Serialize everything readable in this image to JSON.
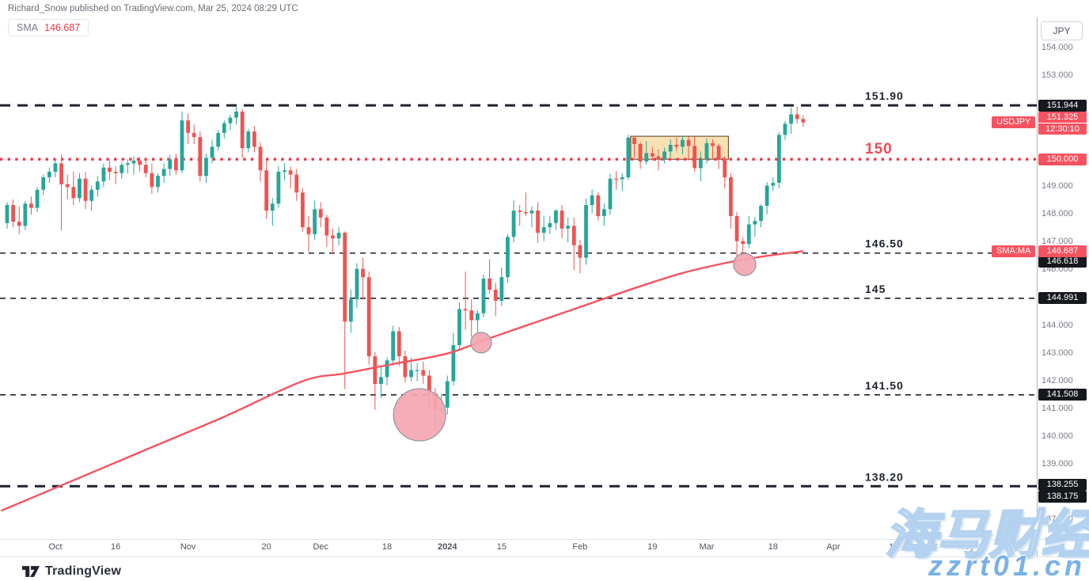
{
  "header": {
    "published_line": "Richard_Snow published on TradingView.com, Mar 25, 2024 08:29 UTC"
  },
  "legend": {
    "indicator": "SMA",
    "value": "146.687"
  },
  "axis_button_label": "JPY",
  "footer": {
    "brand": "TradingView"
  },
  "watermark": {
    "line1": "海马财经",
    "line2": "zzrt01.cn"
  },
  "colors": {
    "up": "#26a69a",
    "down": "#ef5350",
    "sma_line": "#f7525f",
    "red": "#f23645",
    "badge_red": "#f7525f",
    "badge_dark": "#16181e",
    "level_dark": "#1e222d",
    "axis_text": "#787b86",
    "date_text": "#50535e",
    "box_fill": "rgba(247,216,160,0.8)",
    "box_stroke": "#50401f",
    "circle_fill": "rgba(244,166,178,0.92)",
    "circle_stroke": "#9598a1"
  },
  "chart_data": {
    "type": "candlestick",
    "symbol": "USDJPY",
    "quote_currency": "JPY",
    "last_price_label": "151.325",
    "countdown": "12:30:10",
    "sma_axis_label": "SMA:MA",
    "sma_axis_value": "146.687",
    "ylim": [
      137.0,
      155.0
    ],
    "candles": [
      [
        147.7,
        148.45,
        147.5,
        148.35
      ],
      [
        148.35,
        148.55,
        147.55,
        147.75
      ],
      [
        147.75,
        148.3,
        147.3,
        147.6
      ],
      [
        147.6,
        148.5,
        147.45,
        148.4
      ],
      [
        148.4,
        148.65,
        148.0,
        148.25
      ],
      [
        148.25,
        149.0,
        148.1,
        148.9
      ],
      [
        148.9,
        149.45,
        148.7,
        149.35
      ],
      [
        149.35,
        149.7,
        149.15,
        149.55
      ],
      [
        149.55,
        149.95,
        149.35,
        149.85
      ],
      [
        149.85,
        150.16,
        147.43,
        149.1
      ],
      [
        149.1,
        149.45,
        148.55,
        149.0
      ],
      [
        149.0,
        149.55,
        148.35,
        148.6
      ],
      [
        148.6,
        149.5,
        148.45,
        149.3
      ],
      [
        149.3,
        149.55,
        148.2,
        148.5
      ],
      [
        148.5,
        149.05,
        148.15,
        148.9
      ],
      [
        148.9,
        149.4,
        148.65,
        149.2
      ],
      [
        149.2,
        149.85,
        149.0,
        149.7
      ],
      [
        149.7,
        149.95,
        149.25,
        149.55
      ],
      [
        149.55,
        149.75,
        149.1,
        149.5
      ],
      [
        149.5,
        149.9,
        149.3,
        149.8
      ],
      [
        149.8,
        150.0,
        149.5,
        149.85
      ],
      [
        149.85,
        150.1,
        149.45,
        149.95
      ],
      [
        149.95,
        150.08,
        149.55,
        149.8
      ],
      [
        149.8,
        150.05,
        149.35,
        149.5
      ],
      [
        149.5,
        149.85,
        148.75,
        149.0
      ],
      [
        149.0,
        149.5,
        148.8,
        149.4
      ],
      [
        149.4,
        149.85,
        149.15,
        149.65
      ],
      [
        149.65,
        150.15,
        149.4,
        150.0
      ],
      [
        150.0,
        150.2,
        149.45,
        149.6
      ],
      [
        149.6,
        151.72,
        149.5,
        151.4
      ],
      [
        151.4,
        151.65,
        150.55,
        150.95
      ],
      [
        150.95,
        151.25,
        150.55,
        150.8
      ],
      [
        150.8,
        151.0,
        149.2,
        149.4
      ],
      [
        149.4,
        150.2,
        149.15,
        150.05
      ],
      [
        150.05,
        150.7,
        149.85,
        150.45
      ],
      [
        150.45,
        151.05,
        150.3,
        150.95
      ],
      [
        150.95,
        151.4,
        150.75,
        151.3
      ],
      [
        151.3,
        151.6,
        151.05,
        151.5
      ],
      [
        151.5,
        151.91,
        151.25,
        151.72
      ],
      [
        151.72,
        151.82,
        150.05,
        150.4
      ],
      [
        150.4,
        151.1,
        150.25,
        151.0
      ],
      [
        151.0,
        151.2,
        150.25,
        150.45
      ],
      [
        150.45,
        150.6,
        149.2,
        149.6
      ],
      [
        149.6,
        149.95,
        147.85,
        148.15
      ],
      [
        148.15,
        148.6,
        147.6,
        148.4
      ],
      [
        148.4,
        149.75,
        148.25,
        149.55
      ],
      [
        149.55,
        149.85,
        149.25,
        149.6
      ],
      [
        149.6,
        149.75,
        148.95,
        149.45
      ],
      [
        149.45,
        149.65,
        148.5,
        148.8
      ],
      [
        148.8,
        148.95,
        147.4,
        147.55
      ],
      [
        147.55,
        147.95,
        146.65,
        147.3
      ],
      [
        147.3,
        148.5,
        147.1,
        148.2
      ],
      [
        148.2,
        148.45,
        147.55,
        147.9
      ],
      [
        147.9,
        148.0,
        146.85,
        147.25
      ],
      [
        147.25,
        147.5,
        146.6,
        147.15
      ],
      [
        147.15,
        147.55,
        146.9,
        147.35
      ],
      [
        147.35,
        147.4,
        141.71,
        144.15
      ],
      [
        144.15,
        145.3,
        143.75,
        144.95
      ],
      [
        144.95,
        146.25,
        144.65,
        146.05
      ],
      [
        146.05,
        146.45,
        144.95,
        145.75
      ],
      [
        145.75,
        145.95,
        142.6,
        142.9
      ],
      [
        142.9,
        143.05,
        140.97,
        141.9
      ],
      [
        141.9,
        142.55,
        141.4,
        142.15
      ],
      [
        142.15,
        142.85,
        141.85,
        142.75
      ],
      [
        142.75,
        144.0,
        142.55,
        143.8
      ],
      [
        143.8,
        143.95,
        142.55,
        142.9
      ],
      [
        142.9,
        143.1,
        141.95,
        142.15
      ],
      [
        142.15,
        142.85,
        142.0,
        142.4
      ],
      [
        142.4,
        142.65,
        142.0,
        142.4
      ],
      [
        142.4,
        142.7,
        141.9,
        142.2
      ],
      [
        142.2,
        142.4,
        140.9,
        141.55
      ],
      [
        141.55,
        141.75,
        140.25,
        140.95
      ],
      [
        140.95,
        141.55,
        140.5,
        141.05
      ],
      [
        141.05,
        142.2,
        140.8,
        142.0
      ],
      [
        142.0,
        143.75,
        141.85,
        143.3
      ],
      [
        143.3,
        144.85,
        143.1,
        144.6
      ],
      [
        144.6,
        145.95,
        143.85,
        144.55
      ],
      [
        144.55,
        144.95,
        143.6,
        144.2
      ],
      [
        144.2,
        144.55,
        143.4,
        144.45
      ],
      [
        144.45,
        145.85,
        144.3,
        145.7
      ],
      [
        145.7,
        146.4,
        145.15,
        145.3
      ],
      [
        145.3,
        145.55,
        144.35,
        144.9
      ],
      [
        144.9,
        146.1,
        144.7,
        145.75
      ],
      [
        145.75,
        147.3,
        145.55,
        147.2
      ],
      [
        147.2,
        148.52,
        147.0,
        148.15
      ],
      [
        148.15,
        148.35,
        147.6,
        148.1
      ],
      [
        148.1,
        148.8,
        147.95,
        148.05
      ],
      [
        148.05,
        148.3,
        147.55,
        148.15
      ],
      [
        148.15,
        148.45,
        146.99,
        147.35
      ],
      [
        147.35,
        147.95,
        147.05,
        147.55
      ],
      [
        147.55,
        147.95,
        147.3,
        147.7
      ],
      [
        147.7,
        148.2,
        147.45,
        148.15
      ],
      [
        148.15,
        148.35,
        147.15,
        147.5
      ],
      [
        147.5,
        147.9,
        147.0,
        147.6
      ],
      [
        147.6,
        147.9,
        146.0,
        146.9
      ],
      [
        146.9,
        147.1,
        145.89,
        146.45
      ],
      [
        146.45,
        148.58,
        146.2,
        148.35
      ],
      [
        148.35,
        148.9,
        148.05,
        148.7
      ],
      [
        148.7,
        148.8,
        147.8,
        147.95
      ],
      [
        147.95,
        148.4,
        147.6,
        148.2
      ],
      [
        148.2,
        149.48,
        148.0,
        149.3
      ],
      [
        149.3,
        149.57,
        148.9,
        149.28
      ],
      [
        149.28,
        149.5,
        148.85,
        149.35
      ],
      [
        149.35,
        150.88,
        149.25,
        150.78
      ],
      [
        150.78,
        150.85,
        150.05,
        150.55
      ],
      [
        150.55,
        150.62,
        149.65,
        149.92
      ],
      [
        149.92,
        150.65,
        149.8,
        150.22
      ],
      [
        150.22,
        150.45,
        149.95,
        150.1
      ],
      [
        150.1,
        150.35,
        149.6,
        150.0
      ],
      [
        150.0,
        150.42,
        149.85,
        150.28
      ],
      [
        150.28,
        150.72,
        150.08,
        150.52
      ],
      [
        150.52,
        150.78,
        150.3,
        150.45
      ],
      [
        150.45,
        150.85,
        150.18,
        150.7
      ],
      [
        150.7,
        150.82,
        149.95,
        150.48
      ],
      [
        150.48,
        150.82,
        149.55,
        149.68
      ],
      [
        149.68,
        150.28,
        149.2,
        149.98
      ],
      [
        149.98,
        150.75,
        149.85,
        150.58
      ],
      [
        150.58,
        150.72,
        150.02,
        150.48
      ],
      [
        150.48,
        150.56,
        149.65,
        150.02
      ],
      [
        150.02,
        150.12,
        148.95,
        149.35
      ],
      [
        149.35,
        149.5,
        147.5,
        147.95
      ],
      [
        147.95,
        148.1,
        146.48,
        147.05
      ],
      [
        147.05,
        147.18,
        146.5,
        146.95
      ],
      [
        146.95,
        147.95,
        146.8,
        147.65
      ],
      [
        147.65,
        147.92,
        147.2,
        147.78
      ],
      [
        147.78,
        148.38,
        147.55,
        148.32
      ],
      [
        148.32,
        149.18,
        148.02,
        149.05
      ],
      [
        149.05,
        149.35,
        148.85,
        149.15
      ],
      [
        149.15,
        150.97,
        148.95,
        150.88
      ],
      [
        150.88,
        151.38,
        150.7,
        151.28
      ],
      [
        151.28,
        151.86,
        150.92,
        151.62
      ],
      [
        151.62,
        151.9,
        151.28,
        151.45
      ],
      [
        151.45,
        151.58,
        151.18,
        151.33
      ]
    ],
    "sma_anchors": [
      [
        -1,
        137.33
      ],
      [
        12,
        138.52
      ],
      [
        24,
        139.62
      ],
      [
        36,
        140.72
      ],
      [
        49,
        142.0
      ],
      [
        56,
        142.28
      ],
      [
        64,
        142.62
      ],
      [
        73,
        143.0
      ],
      [
        80,
        143.55
      ],
      [
        88,
        144.15
      ],
      [
        96,
        144.75
      ],
      [
        104,
        145.35
      ],
      [
        112,
        145.9
      ],
      [
        120,
        146.3
      ],
      [
        126,
        146.52
      ],
      [
        132,
        146.687
      ]
    ],
    "levels": [
      {
        "price": 151.944,
        "style": "bold-dashed",
        "label": "151.90",
        "label_color": "#1e222d",
        "label_size": 14
      },
      {
        "price": 150.0,
        "style": "red-dotted",
        "label": "150",
        "label_color": "#f34a57",
        "label_size": 19
      },
      {
        "price": 146.618,
        "style": "thin-dashed",
        "label": "146.50",
        "label_color": "#1e222d",
        "label_size": 14
      },
      {
        "price": 144.991,
        "style": "thin-dashed",
        "label": "145",
        "label_color": "#1e222d",
        "label_size": 14
      },
      {
        "price": 141.508,
        "style": "thin-dashed",
        "label": "141.50",
        "label_color": "#1e222d",
        "label_size": 14
      },
      {
        "price": 138.215,
        "style": "bold-dashed",
        "label": "138.20",
        "label_color": "#1e222d",
        "label_size": 14
      }
    ],
    "y_ticks": [
      {
        "price": 154,
        "label": "154.000"
      },
      {
        "price": 153,
        "label": "153.000"
      },
      {
        "price": 149,
        "label": "149.000"
      },
      {
        "price": 148,
        "label": "148.000"
      },
      {
        "price": 147,
        "label": "147.000"
      },
      {
        "price": 146,
        "label": "146.000"
      },
      {
        "price": 144,
        "label": "144.000"
      },
      {
        "price": 143,
        "label": "143.000"
      },
      {
        "price": 142,
        "label": "142.000"
      },
      {
        "price": 141,
        "label": "141.000"
      },
      {
        "price": 140,
        "label": "140.000"
      },
      {
        "price": 139,
        "label": "139.000"
      },
      {
        "price": 137,
        "label": "137.000"
      }
    ],
    "dark_badges": [
      {
        "price": 151.944,
        "label": "151.944",
        "dy": 0
      },
      {
        "price": 146.618,
        "label": "146.618",
        "dy": 11
      },
      {
        "price": 144.991,
        "label": "144.991",
        "dy": 0
      },
      {
        "price": 141.508,
        "label": "141.508",
        "dy": 0
      },
      {
        "price": 138.255,
        "label": "138.255",
        "dy": 0
      },
      {
        "price": 138.175,
        "label": "138.175",
        "dy": 12
      }
    ],
    "red_badges": [
      {
        "price": 150.0,
        "label": "150.000"
      },
      {
        "price": 146.687,
        "label": "146.687"
      }
    ],
    "x_ticks": [
      {
        "i": 8,
        "label": "Oct"
      },
      {
        "i": 18,
        "label": "16"
      },
      {
        "i": 30,
        "label": "Nov"
      },
      {
        "i": 43,
        "label": "20"
      },
      {
        "i": 52,
        "label": "Dec"
      },
      {
        "i": 63,
        "label": "18"
      },
      {
        "i": 73,
        "label": "2024",
        "bold": true
      },
      {
        "i": 82,
        "label": "15"
      },
      {
        "i": 95,
        "label": "Feb"
      },
      {
        "i": 107,
        "label": "19"
      },
      {
        "i": 116,
        "label": "Mar"
      },
      {
        "i": 127,
        "label": "18"
      },
      {
        "i": 137,
        "label": "Apr"
      },
      {
        "i": 147,
        "label": "15"
      },
      {
        "i": 159,
        "label": "May"
      }
    ],
    "annotations": {
      "box": {
        "i1": 103.4,
        "i2": 119.6,
        "top": 150.83,
        "bottom": 150.0
      },
      "circles": [
        {
          "i": 68.4,
          "price": 140.79,
          "r": 33
        },
        {
          "i": 78.6,
          "price": 143.39,
          "r": 13
        },
        {
          "i": 122.3,
          "price": 146.21,
          "r": 14
        }
      ]
    }
  }
}
